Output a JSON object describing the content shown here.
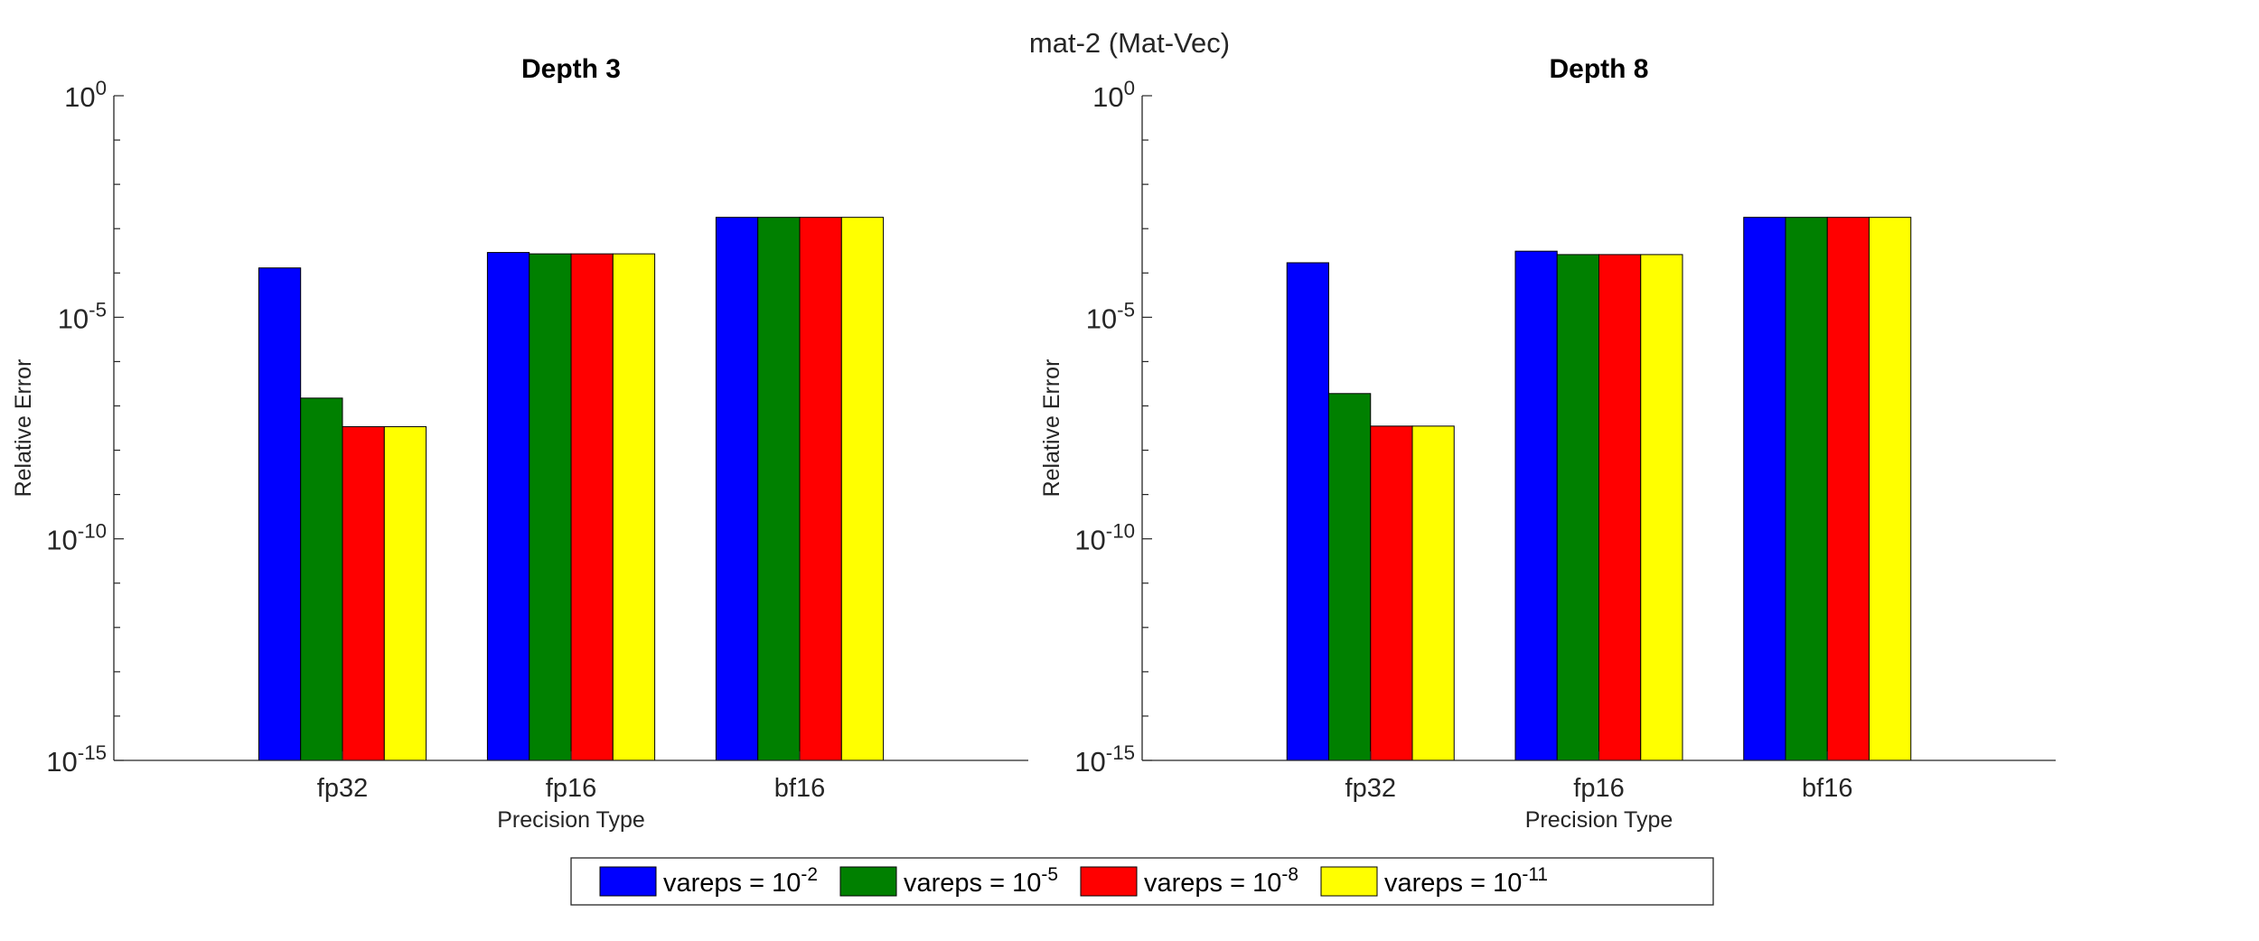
{
  "figure": {
    "title": "mat-2 (Mat-Vec)"
  },
  "chart_data": [
    {
      "type": "bar",
      "title": "Depth 3",
      "xlabel": "Precision Type",
      "ylabel": "Relative Error",
      "yscale": "log",
      "ylim": [
        1e-15,
        1
      ],
      "ytick_labels": [
        {
          "base": "10",
          "exp": "-15"
        },
        {
          "base": "10",
          "exp": "-10"
        },
        {
          "base": "10",
          "exp": "-5"
        },
        {
          "base": "10",
          "exp": "0"
        }
      ],
      "categories": [
        "fp32",
        "fp16",
        "bf16"
      ],
      "series": [
        {
          "name": "vareps = 10^-2",
          "values": [
            0.00013,
            0.00029,
            0.0018
          ]
        },
        {
          "name": "vareps = 10^-5",
          "values": [
            1.5e-07,
            0.00027,
            0.0018
          ]
        },
        {
          "name": "vareps = 10^-8",
          "values": [
            3.4e-08,
            0.00027,
            0.0018
          ]
        },
        {
          "name": "vareps = 10^-11",
          "values": [
            3.4e-08,
            0.00027,
            0.0018
          ]
        }
      ],
      "grid": false
    },
    {
      "type": "bar",
      "title": "Depth 8",
      "xlabel": "Precision Type",
      "ylabel": "Relative Error",
      "yscale": "log",
      "ylim": [
        1e-15,
        1
      ],
      "ytick_labels": [
        {
          "base": "10",
          "exp": "-15"
        },
        {
          "base": "10",
          "exp": "-10"
        },
        {
          "base": "10",
          "exp": "-5"
        },
        {
          "base": "10",
          "exp": "0"
        }
      ],
      "categories": [
        "fp32",
        "fp16",
        "bf16"
      ],
      "series": [
        {
          "name": "vareps = 10^-2",
          "values": [
            0.00017,
            0.00031,
            0.0018
          ]
        },
        {
          "name": "vareps = 10^-5",
          "values": [
            1.9e-07,
            0.00026,
            0.0018
          ]
        },
        {
          "name": "vareps = 10^-8",
          "values": [
            3.5e-08,
            0.00026,
            0.0018
          ]
        },
        {
          "name": "vareps = 10^-11",
          "values": [
            3.5e-08,
            0.00026,
            0.0018
          ]
        }
      ],
      "grid": false
    }
  ],
  "legend": {
    "placement": "bottom-center",
    "entries": [
      {
        "label": "vareps = 10",
        "exp": "-2",
        "color": "#0000ff"
      },
      {
        "label": "vareps = 10",
        "exp": "-5",
        "color": "#008000"
      },
      {
        "label": "vareps = 10",
        "exp": "-8",
        "color": "#ff0000"
      },
      {
        "label": "vareps = 10",
        "exp": "-11",
        "color": "#ffff00"
      }
    ]
  },
  "colors": {
    "series": [
      "#0000ff",
      "#008000",
      "#ff0000",
      "#ffff00"
    ],
    "axis": "#262626",
    "bar_edge": "#000000"
  }
}
